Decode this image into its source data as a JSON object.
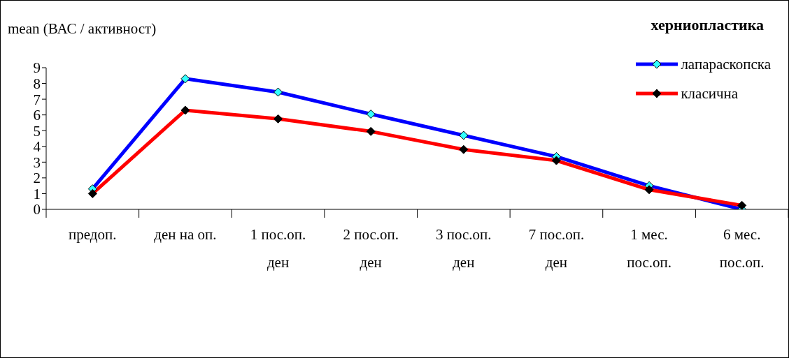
{
  "chart_data": {
    "type": "line",
    "title": "херниопластика",
    "ylabel": "mean (ВАС / активност)",
    "categories": [
      "предоп.",
      "ден на оп.",
      "1 пос.оп.\nден",
      "2 пос.оп.\nден",
      "3 пос.оп.\nден",
      "7 пос.оп.\nден",
      "1 мес.\nпос.оп.",
      "6 мес.\nпос.оп."
    ],
    "series": [
      {
        "name": "лапараскопска",
        "color": "#0000ff",
        "values": [
          1.3,
          8.3,
          7.45,
          6.05,
          4.7,
          3.35,
          1.5,
          0
        ]
      },
      {
        "name": "класична",
        "color": "#ff0000",
        "values": [
          1.0,
          6.3,
          5.75,
          4.95,
          3.8,
          3.1,
          1.25,
          0.25
        ]
      }
    ],
    "ylim": [
      0,
      9
    ],
    "yticks": [
      0,
      1,
      2,
      3,
      4,
      5,
      6,
      7,
      8,
      9
    ],
    "grid": false,
    "legend": "top right",
    "marker": "diamond",
    "line_style": "solid"
  }
}
